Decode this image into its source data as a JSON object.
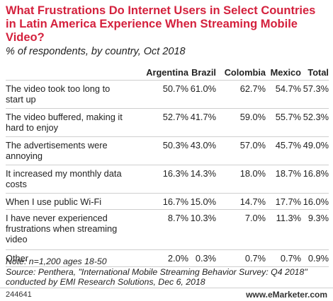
{
  "title": "What Frustrations Do Internet Users in Select Countries in Latin America Experience When Streaming Mobile Video?",
  "subtitle": "% of respondents, by country, Oct 2018",
  "chart_data": {
    "type": "table",
    "columns": [
      "Argentina",
      "Brazil",
      "Colombia",
      "Mexico",
      "Total"
    ],
    "rows": [
      {
        "label": "The video took too long to start up",
        "values": [
          "50.7%",
          "61.0%",
          "62.7%",
          "54.7%",
          "57.3%"
        ]
      },
      {
        "label": "The video buffered, making it hard to enjoy",
        "values": [
          "52.7%",
          "41.7%",
          "59.0%",
          "55.7%",
          "52.3%"
        ]
      },
      {
        "label": "The advertisements were annoying",
        "values": [
          "50.3%",
          "43.0%",
          "57.0%",
          "45.7%",
          "49.0%"
        ]
      },
      {
        "label": "It increased my monthly data costs",
        "values": [
          "16.3%",
          "14.3%",
          "18.0%",
          "18.7%",
          "16.8%"
        ]
      },
      {
        "label": "When I use public Wi-Fi",
        "values": [
          "16.7%",
          "15.0%",
          "14.7%",
          "17.7%",
          "16.0%"
        ]
      },
      {
        "label": "I have never experienced frustrations when streaming video",
        "values": [
          "8.7%",
          "10.3%",
          "7.0%",
          "11.3%",
          "9.3%"
        ]
      },
      {
        "label": "Other",
        "values": [
          "2.0%",
          "0.3%",
          "0.7%",
          "0.7%",
          "0.9%"
        ]
      }
    ]
  },
  "notes": {
    "line1": "Note: n=1,200 ages 18-50",
    "line2": "Source: Penthera, \"International Mobile Streaming Behavior Survey: Q4 2018\" conducted by EMI Research Solutions, Dec 6, 2018"
  },
  "footer": {
    "id": "244641",
    "brand": "www.eMarketer.com"
  }
}
